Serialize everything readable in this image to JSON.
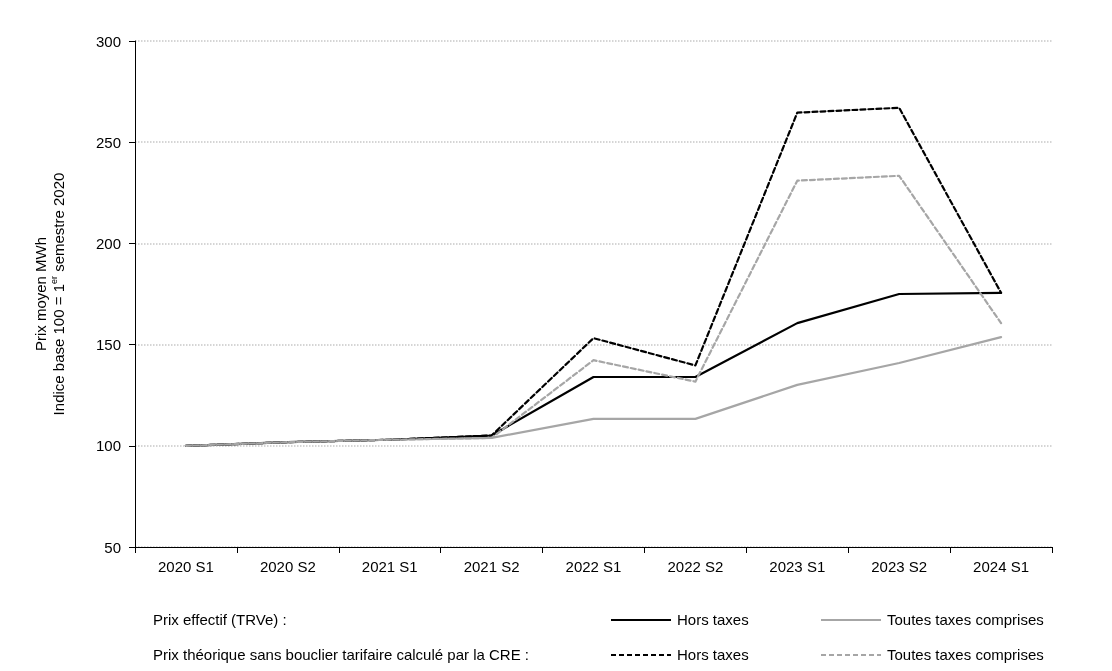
{
  "chart_data": {
    "type": "line",
    "ylabel": "Prix moyen MWh\nIndice base 100 = 1$^{er}$ semestre 2020",
    "categories": [
      "2020 S1",
      "2020 S2",
      "2021 S1",
      "2021 S2",
      "2022 S1",
      "2022 S2",
      "2023 S1",
      "2023 S2",
      "2024 S1"
    ],
    "series": [
      {
        "name": "Hors taxes",
        "color": "#000000",
        "line_style": "solid",
        "values": [
          100,
          101.8,
          103,
          105.1,
          134,
          134,
          160.6,
          175,
          175.6
        ]
      },
      {
        "name": "Toutes taxes comprises",
        "color": "#a6a6a6",
        "line_style": "solid",
        "values": [
          100,
          101.8,
          103,
          103.9,
          113.3,
          113.3,
          130.1,
          140.9,
          153.7
        ]
      },
      {
        "name": "Hors taxes",
        "color": "#000000",
        "line_style": "dashed",
        "values": [
          100,
          101.8,
          103,
          105.1,
          153.2,
          139.7,
          264.6,
          267,
          175.6
        ]
      },
      {
        "name": "Toutes taxes comprises",
        "color": "#a6a6a6",
        "line_style": "dashed",
        "values": [
          100,
          101.8,
          103,
          103.9,
          142.3,
          131.7,
          231,
          233.4,
          160.6
        ]
      }
    ],
    "annotations": [
      "Prix effectif (TRVe) :",
      "Prix théorique sans bouclier tarifaire calculé par la CRE :"
    ],
    "ylim": [
      50,
      300
    ],
    "yticks": [
      50,
      100,
      150,
      200,
      250,
      300
    ],
    "grid": "y",
    "legend": "bottom",
    "marker": "none"
  }
}
